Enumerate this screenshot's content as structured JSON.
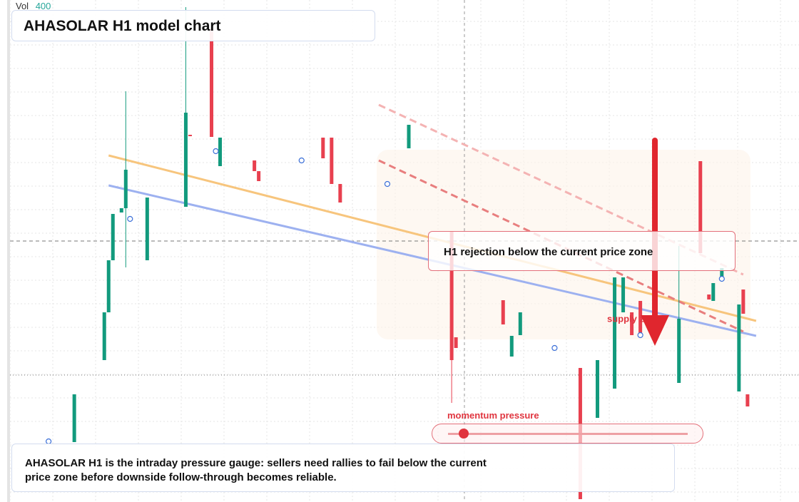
{
  "header": {
    "vol_label": "Vol",
    "vol_value": 400,
    "title": "AHASOLAR H1 model chart"
  },
  "chart_data": {
    "type": "candlestick",
    "x": [
      13,
      20,
      21,
      22,
      24,
      25,
      30,
      39,
      40,
      45,
      47,
      55,
      56,
      71,
      73,
      75,
      91,
      101,
      102,
      113,
      115,
      117,
      131,
      135,
      139,
      141,
      143,
      145,
      154,
      159,
      161,
      162,
      164,
      168,
      169,
      170
    ],
    "open": [
      8.4,
      19.9,
      26.6,
      33.9,
      40.6,
      41.2,
      33.9,
      41.4,
      51.5,
      66.4,
      47.1,
      47.9,
      46.4,
      51.1,
      51.1,
      44.6,
      49.6,
      37.9,
      23.1,
      28.3,
      20.4,
      23.4,
      18.8,
      11.8,
      15.9,
      26.6,
      26.6,
      28.2,
      16.7,
      47.8,
      29.1,
      28.2,
      31.2,
      15.5,
      29.8,
      15.1
    ],
    "high": [
      15.1,
      26.6,
      33.9,
      40.4,
      41.2,
      57.6,
      42.7,
      69.4,
      51.5,
      66.4,
      51.1,
      47.9,
      46.4,
      51.1,
      51.1,
      44.6,
      52.9,
      37.9,
      23.1,
      28.3,
      23.3,
      26.6,
      18.8,
      19.9,
      31.5,
      31.5,
      26.6,
      28.2,
      35.9,
      47.8,
      29.1,
      30.7,
      32.8,
      27.7,
      29.8,
      15.1
    ],
    "low": [
      8.4,
      19.9,
      26.6,
      33.9,
      40.6,
      32.9,
      33.9,
      41.4,
      51.3,
      51.2,
      47.1,
      46.4,
      45.0,
      48.2,
      44.6,
      42.0,
      49.6,
      13.9,
      21.6,
      24.9,
      20.4,
      23.4,
      0.4,
      11.8,
      15.9,
      26.6,
      23.4,
      23.4,
      16.7,
      34.9,
      28.4,
      28.2,
      31.2,
      15.5,
      26.4,
      13.4
    ],
    "close": [
      15.1,
      26.6,
      33.9,
      40.4,
      41.2,
      46.6,
      42.7,
      54.6,
      51.3,
      51.2,
      51.1,
      46.4,
      45.0,
      48.2,
      44.6,
      42.0,
      52.9,
      19.9,
      21.6,
      24.9,
      23.3,
      26.6,
      0.4,
      19.9,
      31.5,
      31.5,
      23.4,
      23.4,
      25.7,
      34.9,
      28.4,
      30.7,
      32.8,
      27.7,
      26.4,
      13.4
    ],
    "xlim": [
      -2,
      182
    ],
    "ylim": [
      0,
      70.4
    ],
    "up_color": "#129a7d",
    "down_color": "#e8404f",
    "trendlines": [
      {
        "color": "#f7c57d",
        "style": "solid",
        "x": [
          21,
          172
        ],
        "values": [
          48.6,
          25.4
        ]
      },
      {
        "color": "#9db1f0",
        "style": "solid",
        "x": [
          21,
          172
        ],
        "values": [
          44.4,
          23.3
        ]
      },
      {
        "color": "#e87e7e",
        "style": "dashed",
        "x": [
          84,
          169
        ],
        "values": [
          47.9,
          23.9
        ]
      },
      {
        "color": "#f4b3b3",
        "style": "dashed",
        "x": [
          84,
          169
        ],
        "values": [
          55.7,
          31.9
        ]
      }
    ],
    "markers": {
      "color": "#3b6fd8",
      "x": [
        7,
        26,
        46,
        66,
        86,
        125,
        145,
        164
      ],
      "values": [
        8.5,
        39.7,
        49.2,
        47.9,
        44.6,
        21.6,
        23.4,
        31.3
      ]
    },
    "levels": [
      36.6,
      17.8
    ]
  },
  "annotations": {
    "callout": "H1 rejection below the current price zone",
    "zone_label": "supply zone",
    "gauge_label": "momentum pressure"
  },
  "caption": "AHASOLAR H1 is the intraday pressure gauge: sellers need rallies to fail below the current price zone before downside follow-through becomes reliable."
}
